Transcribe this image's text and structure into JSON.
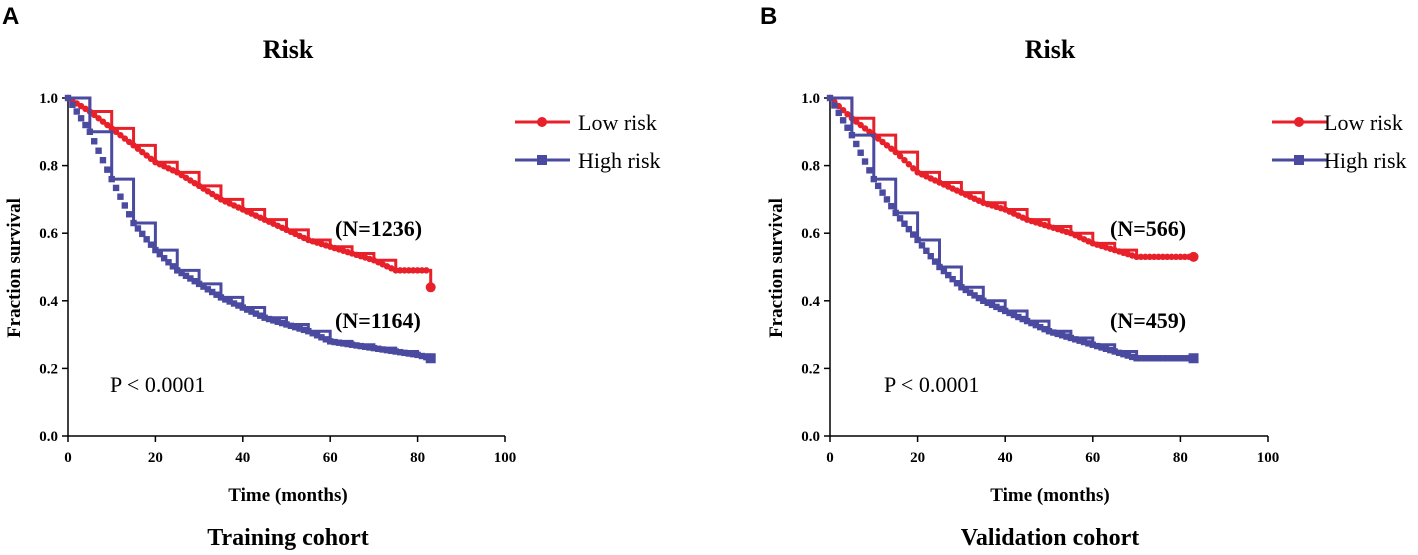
{
  "chart_data": [
    {
      "type": "line",
      "panel": "A",
      "title": "Risk",
      "xlabel": "Time (months)",
      "ylabel": "Fraction survival",
      "caption": "Training cohort",
      "xlim": [
        0,
        100
      ],
      "ylim": [
        0.0,
        1.0
      ],
      "xticks": [
        0,
        20,
        40,
        60,
        80,
        100
      ],
      "yticks": [
        0.0,
        0.2,
        0.4,
        0.6,
        0.8,
        1.0
      ],
      "xtick_labels": [
        "0",
        "20",
        "40",
        "60",
        "80",
        "100"
      ],
      "ytick_labels": [
        "0.0",
        "0.2",
        "0.4",
        "0.6",
        "0.8",
        "1.0"
      ],
      "p_value": "P < 0.0001",
      "legend": [
        "Low risk",
        "High risk"
      ],
      "series": [
        {
          "name": "Low risk",
          "color": "#e8202a",
          "marker": "circle",
          "n_label": "(N=1236)",
          "x": [
            0,
            5,
            10,
            15,
            20,
            25,
            30,
            35,
            40,
            45,
            50,
            55,
            60,
            65,
            70,
            75,
            80,
            82,
            83
          ],
          "y": [
            1.0,
            0.96,
            0.91,
            0.86,
            0.81,
            0.78,
            0.74,
            0.7,
            0.67,
            0.64,
            0.61,
            0.58,
            0.56,
            0.54,
            0.52,
            0.49,
            0.49,
            0.49,
            0.44
          ]
        },
        {
          "name": "High risk",
          "color": "#4a4aa0",
          "marker": "square",
          "n_label": "(N=1164)",
          "x": [
            0,
            5,
            10,
            15,
            20,
            25,
            30,
            35,
            40,
            45,
            50,
            55,
            60,
            65,
            70,
            75,
            80,
            83
          ],
          "y": [
            1.0,
            0.9,
            0.76,
            0.63,
            0.55,
            0.49,
            0.45,
            0.41,
            0.38,
            0.35,
            0.33,
            0.31,
            0.28,
            0.27,
            0.26,
            0.25,
            0.24,
            0.23
          ]
        }
      ]
    },
    {
      "type": "line",
      "panel": "B",
      "title": "Risk",
      "xlabel": "Time (months)",
      "ylabel": "Fraction survival",
      "caption": "Validation cohort",
      "xlim": [
        0,
        100
      ],
      "ylim": [
        0.0,
        1.0
      ],
      "xticks": [
        0,
        20,
        40,
        60,
        80,
        100
      ],
      "yticks": [
        0.0,
        0.2,
        0.4,
        0.6,
        0.8,
        1.0
      ],
      "xtick_labels": [
        "0",
        "20",
        "40",
        "60",
        "80",
        "100"
      ],
      "ytick_labels": [
        "0.0",
        "0.2",
        "0.4",
        "0.6",
        "0.8",
        "1.0"
      ],
      "p_value": "P < 0.0001",
      "legend": [
        "Low risk",
        "High risk"
      ],
      "series": [
        {
          "name": "Low risk",
          "color": "#e8202a",
          "marker": "circle",
          "n_label": "(N=566)",
          "x": [
            0,
            5,
            10,
            15,
            20,
            25,
            30,
            35,
            40,
            45,
            50,
            55,
            60,
            65,
            70,
            75,
            80,
            83
          ],
          "y": [
            1.0,
            0.94,
            0.89,
            0.84,
            0.78,
            0.75,
            0.72,
            0.69,
            0.67,
            0.64,
            0.62,
            0.6,
            0.57,
            0.55,
            0.53,
            0.53,
            0.53,
            0.53
          ]
        },
        {
          "name": "High risk",
          "color": "#4a4aa0",
          "marker": "square",
          "n_label": "(N=459)",
          "x": [
            0,
            5,
            10,
            15,
            20,
            25,
            30,
            35,
            40,
            45,
            50,
            55,
            60,
            65,
            70,
            75,
            80,
            83
          ],
          "y": [
            1.0,
            0.89,
            0.76,
            0.66,
            0.58,
            0.5,
            0.44,
            0.4,
            0.37,
            0.34,
            0.31,
            0.29,
            0.27,
            0.25,
            0.23,
            0.23,
            0.23,
            0.23
          ]
        }
      ]
    }
  ]
}
